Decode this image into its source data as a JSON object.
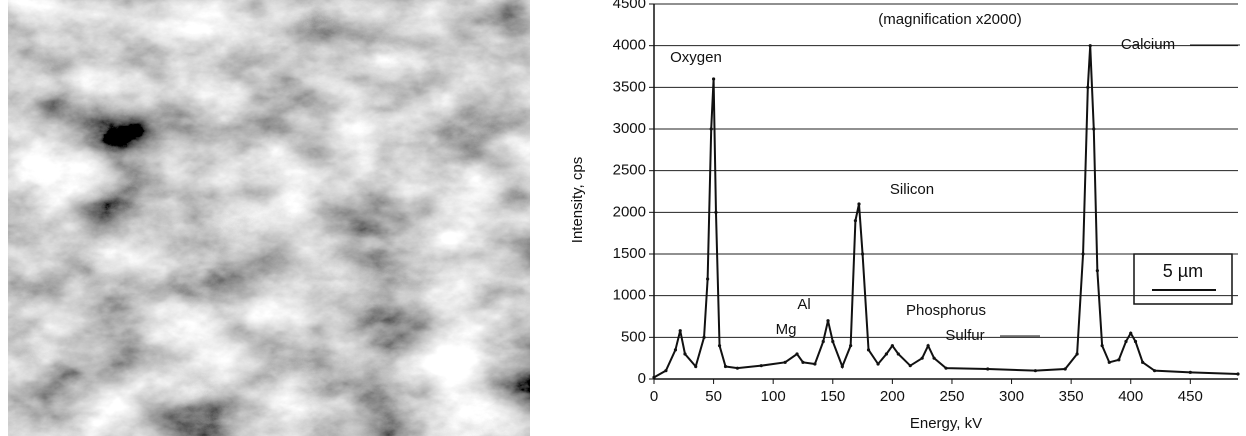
{
  "chart_data": {
    "type": "line",
    "title": "(magnification x2000)",
    "xlabel": "Energy, kV",
    "ylabel": "Intensity, cps",
    "x": [
      0,
      10,
      18,
      22,
      26,
      35,
      42,
      45,
      48,
      50,
      52,
      55,
      60,
      70,
      90,
      110,
      120,
      125,
      135,
      142,
      146,
      150,
      158,
      165,
      169,
      172,
      175,
      180,
      188,
      195,
      200,
      205,
      215,
      225,
      230,
      235,
      245,
      280,
      320,
      345,
      355,
      360,
      364,
      366,
      369,
      372,
      376,
      382,
      390,
      396,
      400,
      404,
      410,
      420,
      450,
      490
    ],
    "values": [
      20,
      100,
      350,
      580,
      300,
      150,
      500,
      1200,
      3000,
      3600,
      2000,
      400,
      150,
      130,
      160,
      200,
      300,
      200,
      180,
      450,
      700,
      450,
      150,
      400,
      1900,
      2100,
      1500,
      350,
      180,
      300,
      400,
      300,
      160,
      250,
      400,
      250,
      130,
      120,
      100,
      120,
      300,
      1500,
      3500,
      4000,
      3000,
      1300,
      400,
      200,
      230,
      450,
      550,
      450,
      200,
      100,
      80,
      60
    ],
    "color": "#111111",
    "xlim": [
      0,
      490
    ],
    "ylim": [
      0,
      4500
    ],
    "xticks": [
      0,
      50,
      100,
      150,
      200,
      250,
      300,
      350,
      400,
      450
    ],
    "yticks": [
      0,
      500,
      1000,
      1500,
      2000,
      2500,
      3000,
      3500,
      4000,
      4500
    ],
    "grid": true,
    "annotations": [
      "Oxygen",
      "Calcium",
      "Silicon",
      "Al",
      "Mg",
      "Phosphorus",
      "Sulfur"
    ],
    "scale_bar": "5 µm"
  }
}
